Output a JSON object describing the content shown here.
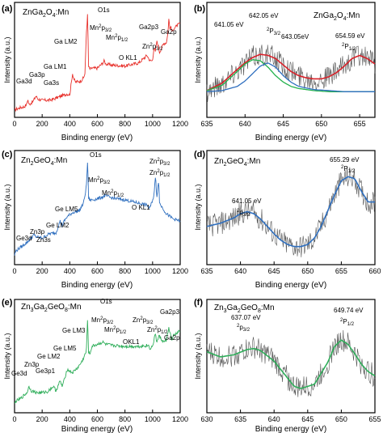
{
  "figure": {
    "panels": [
      "a",
      "b",
      "c",
      "d",
      "e",
      "f"
    ]
  },
  "chart_data": [
    {
      "type": "line",
      "panel_label": "(a)",
      "title": "ZnGa2O4:Mn",
      "xlabel": "Binding energy (eV)",
      "ylabel": "Intensity (a.u.)",
      "xlim": [
        0,
        1200
      ],
      "xticks": [
        0,
        200,
        400,
        600,
        800,
        1000,
        1200
      ],
      "xtick_labels": [
        "0",
        "200",
        "400",
        "600",
        "800",
        "1000",
        "1200"
      ],
      "series": [
        {
          "color": "#e8322d",
          "x": [
            0,
            20,
            40,
            70,
            88,
            95,
            105,
            135,
            155,
            170,
            200,
            250,
            280,
            300,
            340,
            380,
            400,
            420,
            430,
            440,
            480,
            500,
            510,
            520,
            530,
            535,
            545,
            560,
            600,
            640,
            650,
            660,
            700,
            800,
            900,
            960,
            980,
            1000,
            1010,
            1020,
            1030,
            1040,
            1050,
            1080,
            1100,
            1110,
            1118,
            1125,
            1130,
            1145,
            1150,
            1200
          ],
          "y": [
            4,
            5,
            6,
            7,
            9,
            14,
            9,
            12,
            17,
            14,
            13,
            13,
            14,
            15,
            17,
            19,
            18,
            38,
            33,
            30,
            31,
            34,
            38,
            75,
            95,
            45,
            42,
            43,
            43,
            48,
            50,
            47,
            46,
            45,
            48,
            55,
            50,
            50,
            63,
            58,
            68,
            65,
            58,
            66,
            67,
            75,
            90,
            80,
            82,
            76,
            80,
            85
          ]
        }
      ],
      "annotations": [
        "O1s",
        "Mn2p3/2",
        "Mn2p1/2",
        "Ga2p3",
        "Ga2p",
        "Zn2p3/2",
        "O KL1",
        "Ga LM2",
        "Ga LM1",
        "Ga3p",
        "Ga3s",
        "Ga3d"
      ]
    },
    {
      "type": "line",
      "panel_label": "(b)",
      "title": "ZnGa2O4:Mn",
      "xlabel": "Binding energy (eV)",
      "ylabel": "Intensity (a.u.)",
      "xlim": [
        635,
        657
      ],
      "xticks": [
        635,
        640,
        645,
        650,
        655
      ],
      "xtick_labels": [
        "635",
        "640",
        "645",
        "650",
        "655"
      ],
      "fits": [
        {
          "color": "#d8222a",
          "x": [
            635,
            637,
            639,
            640,
            641,
            642,
            643,
            644,
            645,
            646,
            647,
            648,
            649,
            650,
            651,
            652,
            653,
            654,
            655,
            656,
            657
          ],
          "y": [
            22,
            29,
            42,
            48,
            53,
            56,
            55,
            52,
            46,
            40,
            36,
            34,
            33,
            33,
            35,
            39,
            45,
            52,
            55,
            52,
            47
          ]
        },
        {
          "color": "#22b14c",
          "x": [
            635,
            637,
            639,
            640,
            641,
            642,
            643,
            644,
            645,
            646,
            647,
            649,
            651,
            653,
            655,
            657
          ],
          "y": [
            22,
            27,
            40,
            47,
            51,
            50,
            44,
            36,
            30,
            26,
            24,
            22,
            21,
            21,
            21,
            21
          ]
        },
        {
          "color": "#2f6fbf",
          "x": [
            635,
            637,
            639,
            640,
            641,
            642,
            643,
            644,
            645,
            646,
            647,
            649,
            651,
            653,
            655,
            657
          ],
          "y": [
            21,
            22,
            26,
            31,
            38,
            45,
            48,
            44,
            36,
            30,
            26,
            23,
            22,
            21,
            21,
            21
          ]
        }
      ],
      "raw_data_color": "#555555",
      "annotations": [
        "641.05 eV",
        "642.05 eV",
        "2P3/2",
        "643.05eV",
        "654.59 eV",
        "2P1/2"
      ]
    },
    {
      "type": "line",
      "panel_label": "(c)",
      "title": "Zn2GeO4:Mn",
      "xlabel": "Binding energy (eV)",
      "ylabel": "Intensity (a.u.)",
      "xlim": [
        0,
        1200
      ],
      "xticks": [
        0,
        200,
        400,
        600,
        800,
        1000,
        1200
      ],
      "xtick_labels": [
        "0",
        "200",
        "400",
        "600",
        "800",
        "1000",
        "1200"
      ],
      "series": [
        {
          "color": "#2f6fbf",
          "x": [
            0,
            10,
            30,
            70,
            90,
            120,
            140,
            160,
            200,
            250,
            300,
            330,
            345,
            360,
            380,
            420,
            470,
            500,
            520,
            530,
            535,
            545,
            560,
            600,
            640,
            660,
            700,
            800,
            900,
            960,
            980,
            1000,
            1010,
            1022,
            1030,
            1045,
            1050,
            1100,
            1150,
            1200
          ],
          "y": [
            6,
            10,
            12,
            16,
            18,
            22,
            25,
            23,
            22,
            26,
            27,
            38,
            34,
            38,
            42,
            46,
            48,
            55,
            70,
            97,
            60,
            58,
            58,
            59,
            61,
            62,
            60,
            58,
            55,
            53,
            50,
            58,
            62,
            82,
            60,
            78,
            55,
            45,
            40,
            38
          ]
        }
      ],
      "annotations": [
        "O1s",
        "Zn2p3/2",
        "Zn2p1/2",
        "Mn2p3/2",
        "Mn2p1/2",
        "O KL1",
        "Ge LM5",
        "Ge LM2",
        "Zn3p",
        "Zn3s",
        "Ge3d"
      ]
    },
    {
      "type": "line",
      "panel_label": "(d)",
      "title": "Zn2GeO4:Mn",
      "xlabel": "Binding energy (eV)",
      "ylabel": "Intensity (a.u.)",
      "xlim": [
        635,
        660
      ],
      "xticks": [
        635,
        640,
        645,
        650,
        655,
        660
      ],
      "xtick_labels": [
        "635",
        "640",
        "645",
        "650",
        "655",
        "660"
      ],
      "fits": [
        {
          "color": "#2f6fbf",
          "x": [
            635,
            637,
            639,
            640,
            641,
            642,
            643,
            644,
            645,
            646,
            647,
            648,
            649,
            650,
            651,
            652,
            653,
            654,
            655,
            656,
            657,
            658,
            659
          ],
          "y": [
            33,
            36,
            41,
            45,
            47,
            45,
            40,
            33,
            26,
            20,
            16,
            14,
            14,
            16,
            22,
            33,
            48,
            63,
            76,
            80,
            78,
            66,
            56
          ]
        }
      ],
      "raw_data_color": "#555555",
      "annotations": [
        "641.05 eV",
        "2P3/2",
        "655.29 eV",
        "2P1/2"
      ]
    },
    {
      "type": "line",
      "panel_label": "(e)",
      "title": "Zn3Ga2GeO8:Mn",
      "xlabel": "Binding energy (eV)",
      "ylabel": "Intensity (a.u.)",
      "xlim": [
        0,
        1200
      ],
      "xticks": [
        0,
        200,
        400,
        600,
        800,
        1000,
        1200
      ],
      "xtick_labels": [
        "0",
        "200",
        "400",
        "600",
        "800",
        "1000",
        "1200"
      ],
      "series": [
        {
          "color": "#2fae5a",
          "x": [
            0,
            10,
            40,
            90,
            105,
            120,
            140,
            160,
            200,
            240,
            280,
            300,
            330,
            345,
            360,
            380,
            420,
            460,
            490,
            520,
            530,
            535,
            545,
            560,
            600,
            640,
            660,
            700,
            800,
            900,
            970,
            980,
            1000,
            1022,
            1030,
            1045,
            1080,
            1100,
            1118,
            1140,
            1150,
            1200
          ],
          "y": [
            5,
            8,
            10,
            16,
            22,
            18,
            17,
            16,
            16,
            17,
            22,
            18,
            27,
            22,
            28,
            38,
            35,
            40,
            46,
            55,
            88,
            55,
            52,
            60,
            62,
            64,
            62,
            61,
            60,
            60,
            61,
            58,
            60,
            73,
            63,
            70,
            64,
            66,
            78,
            65,
            70,
            75
          ]
        }
      ],
      "annotations": [
        "O1s",
        "Mn2p3/2",
        "Mn2p1/2",
        "Zn2p3/2",
        "Zn2p1/2",
        "Ga2p3",
        "Ga2p",
        "OKL1",
        "Ge LM3",
        "Ge LM5",
        "Ge LM2",
        "Zn3p",
        "Ge3p1",
        "Ge3d"
      ]
    },
    {
      "type": "line",
      "panel_label": "(f)",
      "title": "Zn3Ga2GeO8:Mn",
      "xlabel": "Binding energy (eV)",
      "ylabel": "Intensity (a.u.)",
      "xlim": [
        630,
        655
      ],
      "xticks": [
        630,
        635,
        640,
        645,
        650,
        655
      ],
      "xtick_labels": [
        "630",
        "635",
        "640",
        "645",
        "650",
        "655"
      ],
      "fits": [
        {
          "color": "#2fae5a",
          "x": [
            630,
            632,
            634,
            636,
            637,
            638,
            640,
            642,
            643,
            644,
            646,
            648,
            649,
            650,
            651,
            652,
            653,
            654,
            655
          ],
          "y": [
            55,
            50,
            52,
            57,
            58,
            56,
            46,
            30,
            22,
            20,
            24,
            45,
            60,
            66,
            62,
            53,
            43,
            36,
            32
          ]
        }
      ],
      "raw_data_color": "#555555",
      "annotations": [
        "637.07 eV",
        "2P3/2",
        "649.74 eV",
        "2P1/2"
      ]
    }
  ]
}
